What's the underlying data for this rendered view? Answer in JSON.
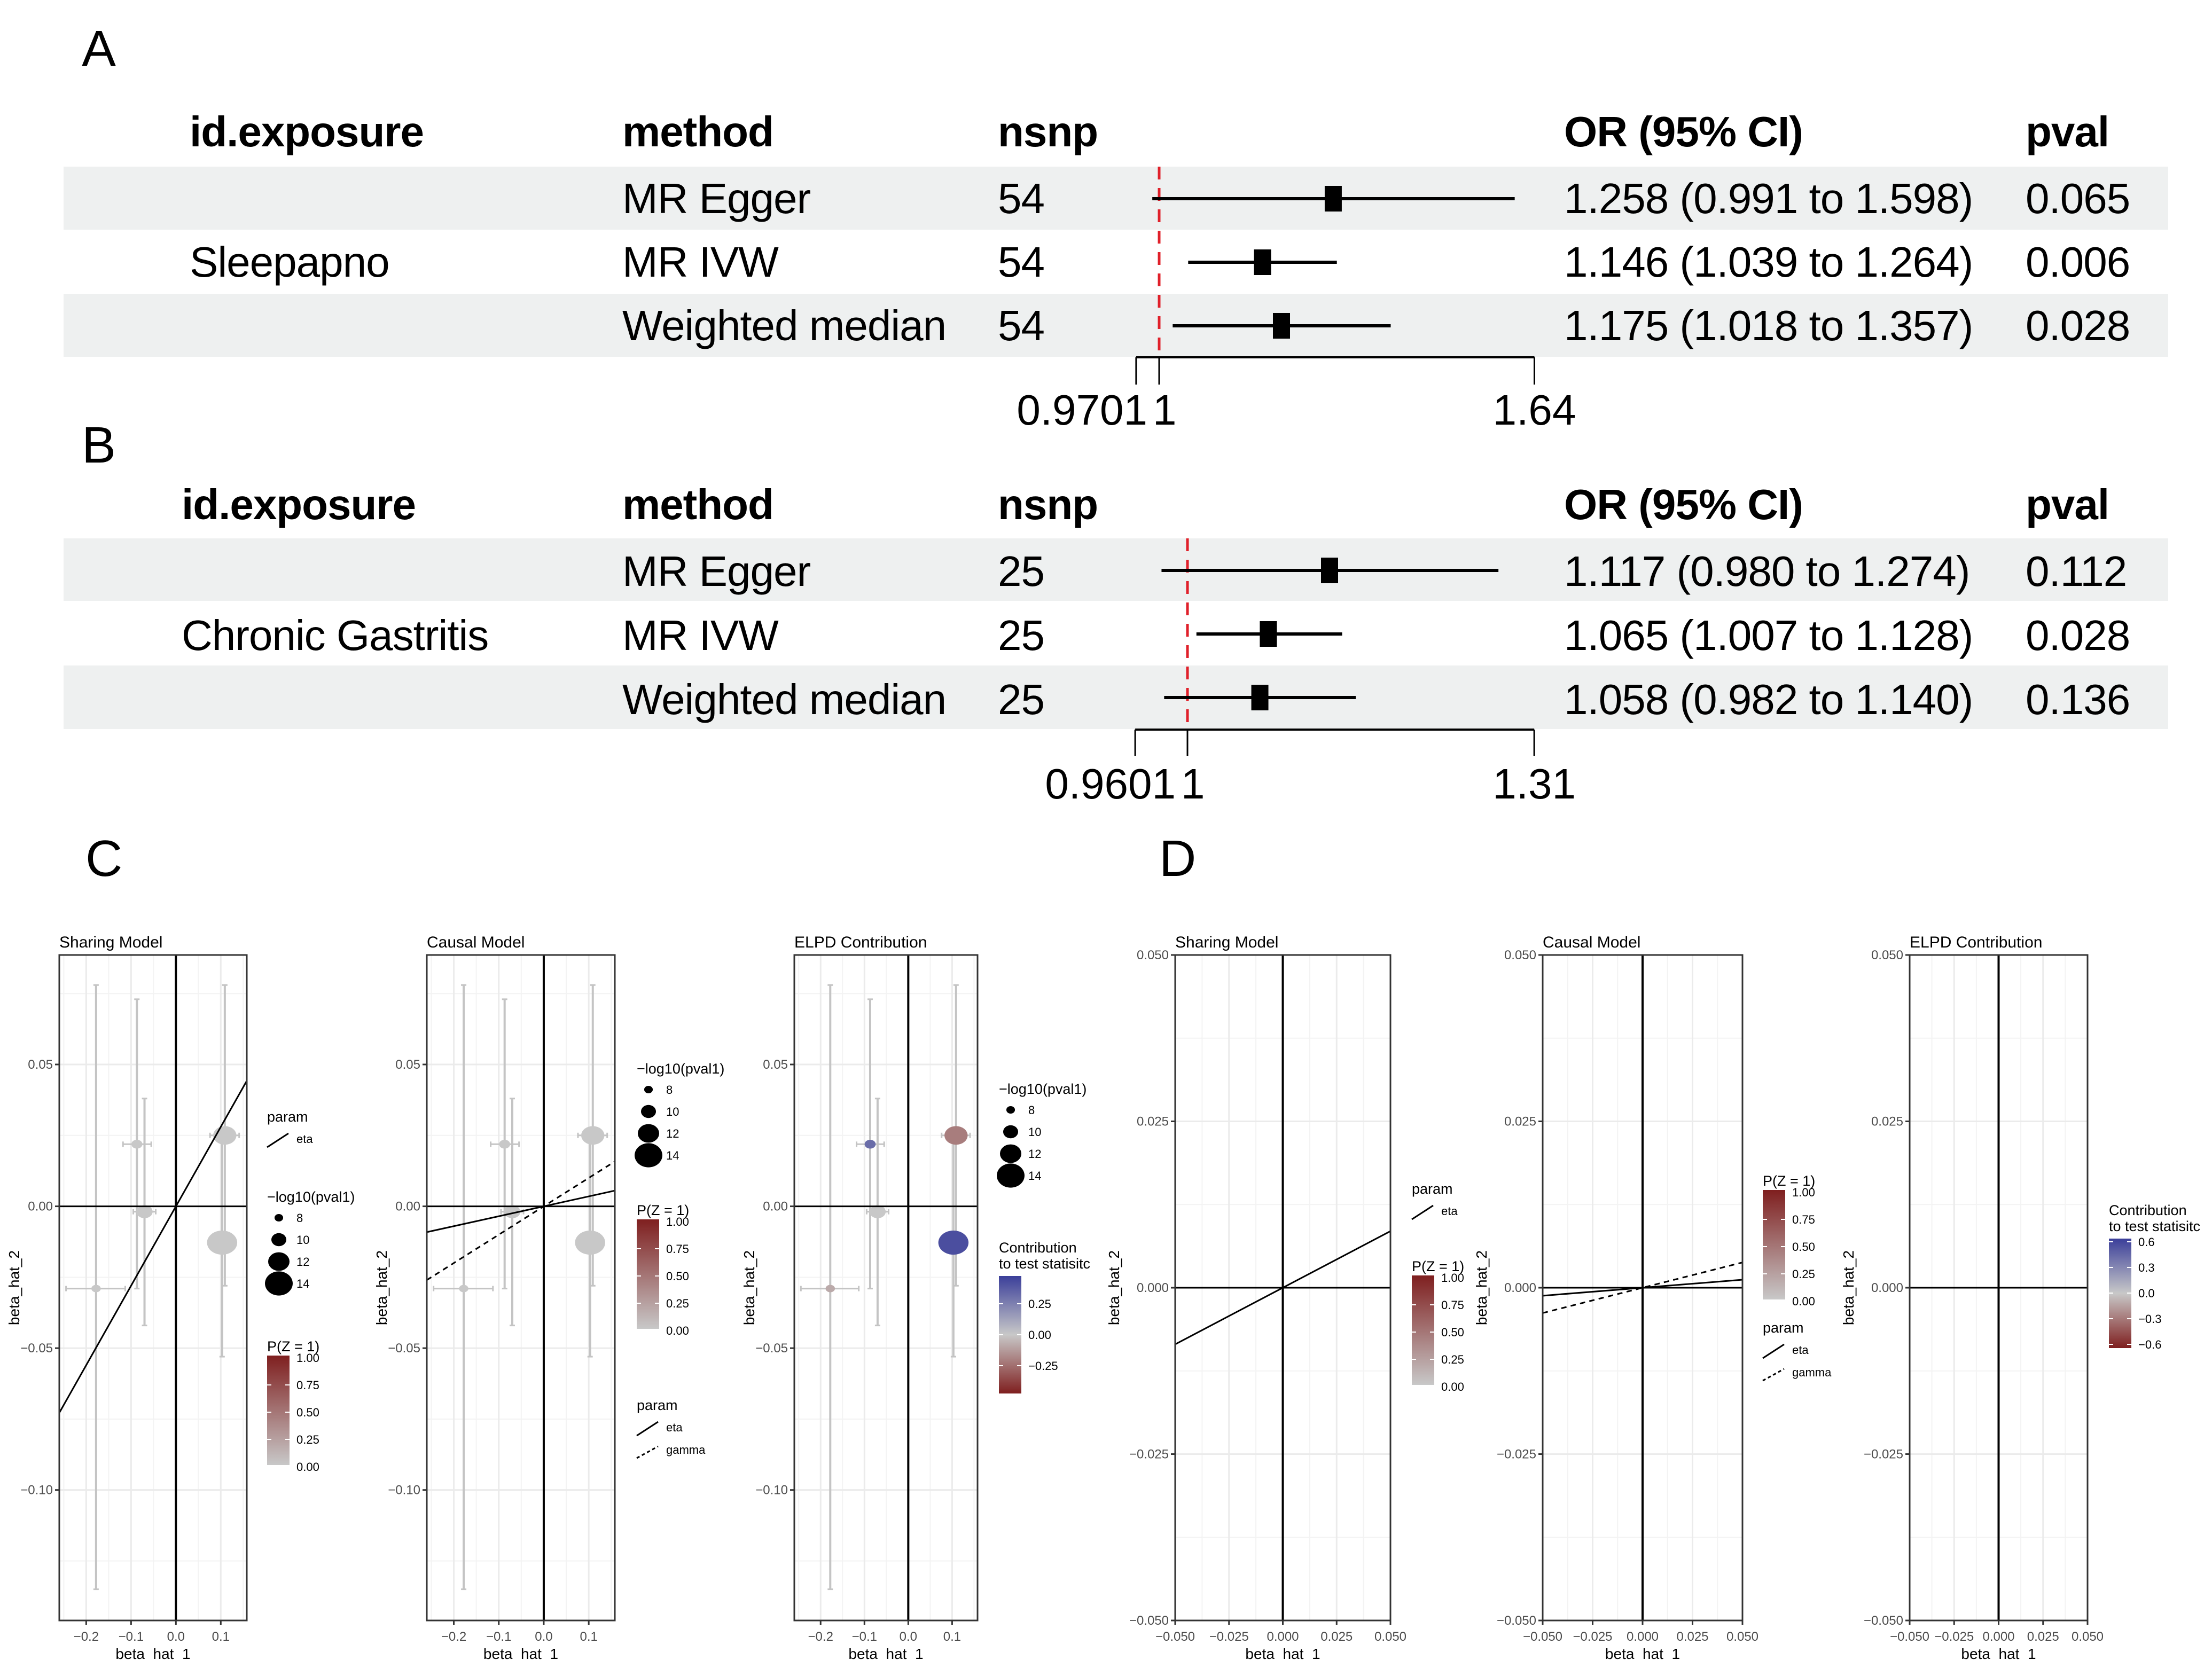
{
  "panels": {
    "A": {
      "label": "A",
      "headers": {
        "exposure": "id.exposure",
        "method": "method",
        "nsnp": "nsnp",
        "or": "OR (95% CI)",
        "pval": "pval"
      },
      "exposure": "Sleepapno",
      "rows": [
        {
          "method": "MR Egger",
          "nsnp": "54",
          "or_text": "1.258 (0.991 to 1.598)",
          "pval": "0.065",
          "or": 1.258,
          "lo": 0.991,
          "hi": 1.598
        },
        {
          "method": "MR IVW",
          "nsnp": "54",
          "or_text": "1.146 (1.039 to 1.264)",
          "pval": "0.006",
          "or": 1.146,
          "lo": 1.039,
          "hi": 1.264
        },
        {
          "method": "Weighted median",
          "nsnp": "54",
          "or_text": "1.175 (1.018 to 1.357)",
          "pval": "0.028",
          "or": 1.175,
          "lo": 1.018,
          "hi": 1.357
        }
      ],
      "axis_ticks": [
        {
          "value": 0.9701,
          "label": "0.9701"
        },
        {
          "value": 1,
          "label": "1"
        },
        {
          "value": 1.64,
          "label": "1.64"
        }
      ],
      "ref_value": 1
    },
    "B": {
      "label": "B",
      "headers": {
        "exposure": "id.exposure",
        "method": "method",
        "nsnp": "nsnp",
        "or": "OR (95% CI)",
        "pval": "pval"
      },
      "exposure": "Chronic Gastritis",
      "rows": [
        {
          "method": "MR Egger",
          "nsnp": "25",
          "or_text": "1.117 (0.980 to 1.274)",
          "pval": "0.112",
          "or": 1.117,
          "lo": 0.98,
          "hi": 1.274
        },
        {
          "method": "MR IVW",
          "nsnp": "25",
          "or_text": "1.065 (1.007 to 1.128)",
          "pval": "0.028",
          "or": 1.065,
          "lo": 1.007,
          "hi": 1.128
        },
        {
          "method": "Weighted median",
          "nsnp": "25",
          "or_text": "1.058 (0.982 to 1.140)",
          "pval": "0.136",
          "or": 1.058,
          "lo": 0.982,
          "hi": 1.14
        }
      ],
      "axis_ticks": [
        {
          "value": 0.9601,
          "label": "0.9601"
        },
        {
          "value": 1,
          "label": "1"
        },
        {
          "value": 1.31,
          "label": "1.31"
        }
      ],
      "ref_value": 1
    },
    "C": {
      "label": "C"
    },
    "D": {
      "label": "D"
    }
  },
  "legend_text": {
    "param": "param",
    "eta": "eta",
    "gamma": "gamma",
    "size_title": "−log10(pval1)",
    "size_labels": [
      "8",
      "10",
      "12",
      "14"
    ],
    "pz_title": "P(Z = 1)",
    "pz_labels": [
      "1.00",
      "0.75",
      "0.50",
      "0.25",
      "0.00"
    ],
    "contrib_title_1": "Contribution",
    "contrib_title_2": "to test statisitc",
    "contrib_labels_C": [
      "0.25",
      "0.00",
      "−0.25"
    ],
    "contrib_labels_D": [
      "0.6",
      "0.3",
      "0.0",
      "−0.3",
      "−0.6"
    ]
  },
  "colors": {
    "band": "#eef0f0",
    "ref_line": "#e0202a",
    "pz_high": "#7f1f1f",
    "pz_low": "#c8c8c8",
    "contrib_high": "#3b3f9a",
    "contrib_mid": "#c8c8c8",
    "contrib_low": "#7f1f1f",
    "errorbar": "#c4c4c4",
    "grid": "#ebebeb"
  },
  "chart_data": [
    {
      "type": "forest",
      "title": "A",
      "categories": [
        "MR Egger",
        "MR IVW",
        "Weighted median"
      ],
      "values": [
        1.258,
        1.146,
        1.175
      ],
      "lower": [
        0.991,
        1.039,
        1.018
      ],
      "upper": [
        1.598,
        1.264,
        1.357
      ],
      "xscale": "log",
      "xticks": [
        0.9701,
        1,
        1.64
      ],
      "reference_line": 1
    },
    {
      "type": "forest",
      "title": "B",
      "categories": [
        "MR Egger",
        "MR IVW",
        "Weighted median"
      ],
      "values": [
        1.117,
        1.065,
        1.058
      ],
      "lower": [
        0.98,
        1.007,
        0.982
      ],
      "upper": [
        1.274,
        1.128,
        1.14
      ],
      "xscale": "log",
      "xticks": [
        0.9601,
        1,
        1.31
      ],
      "reference_line": 1
    },
    {
      "type": "scatter",
      "group": "C",
      "title": "Sharing Model",
      "xlabel": "beta_hat_1",
      "ylabel": "beta_hat_2",
      "xlim": [
        -0.26,
        0.158
      ],
      "ylim": [
        -0.146,
        0.0886
      ],
      "xticks": [
        -0.2,
        -0.1,
        0.0,
        0.1
      ],
      "xtick_labels": [
        "−0.2",
        "−0.1",
        "0.0",
        "0.1"
      ],
      "yticks": [
        0.05,
        0.0,
        -0.05,
        -0.1
      ],
      "ytick_labels": [
        "0.05",
        "0.00",
        "−0.05",
        "−0.10"
      ],
      "points": "C_points",
      "lines": [
        {
          "name": "eta",
          "slope": 0.28,
          "dash": false
        }
      ],
      "color_mode": "pz",
      "legends": [
        "param",
        "size",
        "pz"
      ]
    },
    {
      "type": "scatter",
      "group": "C",
      "title": "Causal Model",
      "xlabel": "beta_hat_1",
      "ylabel": "beta_hat_2",
      "xlim": [
        -0.26,
        0.158
      ],
      "ylim": [
        -0.146,
        0.0886
      ],
      "xticks": [
        -0.2,
        -0.1,
        0.0,
        0.1
      ],
      "xtick_labels": [
        "−0.2",
        "−0.1",
        "0.0",
        "0.1"
      ],
      "yticks": [
        0.05,
        0.0,
        -0.05,
        -0.1
      ],
      "ytick_labels": [
        "0.05",
        "0.00",
        "−0.05",
        "−0.10"
      ],
      "points": "C_points",
      "lines": [
        {
          "name": "eta",
          "slope": 0.035,
          "dash": false
        },
        {
          "name": "gamma",
          "slope": 0.1,
          "dash": true
        }
      ],
      "color_mode": "pz",
      "legends": [
        "size",
        "pz",
        "param2"
      ]
    },
    {
      "type": "scatter",
      "group": "C",
      "title": "ELPD Contribution",
      "xlabel": "beta_hat_1",
      "ylabel": "beta_hat_2",
      "xlim": [
        -0.26,
        0.158
      ],
      "ylim": [
        -0.146,
        0.0886
      ],
      "xticks": [
        -0.2,
        -0.1,
        0.0,
        0.1
      ],
      "xtick_labels": [
        "−0.2",
        "−0.1",
        "0.0",
        "0.1"
      ],
      "yticks": [
        0.05,
        0.0,
        -0.05,
        -0.1
      ],
      "ytick_labels": [
        "0.05",
        "0.00",
        "−0.05",
        "−0.10"
      ],
      "points": "C_points",
      "lines": [],
      "color_mode": "contrib",
      "legends": [
        "size",
        "contribC"
      ]
    },
    {
      "type": "line",
      "group": "D",
      "title": "Sharing Model",
      "xlabel": "beta_hat_1",
      "ylabel": "beta_hat_2",
      "xlim": [
        -0.05,
        0.05
      ],
      "ylim": [
        -0.05,
        0.05
      ],
      "xticks": [
        -0.05,
        -0.025,
        0.0,
        0.025,
        0.05
      ],
      "xtick_labels": [
        "−0.050",
        "−0.025",
        "0.000",
        "0.025",
        "0.050"
      ],
      "yticks": [
        0.05,
        0.025,
        0.0,
        -0.025,
        -0.05
      ],
      "ytick_labels": [
        "0.050",
        "0.025",
        "0.000",
        "−0.025",
        "−0.050"
      ],
      "points": null,
      "lines": [
        {
          "name": "eta",
          "slope": 0.17,
          "dash": false
        }
      ],
      "legends": [
        "param",
        "pz"
      ]
    },
    {
      "type": "line",
      "group": "D",
      "title": "Causal Model",
      "xlabel": "beta_hat_1",
      "ylabel": "beta_hat_2",
      "xlim": [
        -0.05,
        0.05
      ],
      "ylim": [
        -0.05,
        0.05
      ],
      "xticks": [
        -0.05,
        -0.025,
        0.0,
        0.025,
        0.05
      ],
      "xtick_labels": [
        "−0.050",
        "−0.025",
        "0.000",
        "0.025",
        "0.050"
      ],
      "yticks": [
        0.05,
        0.025,
        0.0,
        -0.025,
        -0.05
      ],
      "ytick_labels": [
        "0.050",
        "0.025",
        "0.000",
        "−0.025",
        "−0.050"
      ],
      "points": null,
      "lines": [
        {
          "name": "eta",
          "slope": 0.024,
          "dash": false
        },
        {
          "name": "gamma",
          "slope": 0.076,
          "dash": true
        }
      ],
      "legends": [
        "pz",
        "param2"
      ]
    },
    {
      "type": "line",
      "group": "D",
      "title": "ELPD Contribution",
      "xlabel": "beta_hat_1",
      "ylabel": "beta_hat_2",
      "xlim": [
        -0.05,
        0.05
      ],
      "ylim": [
        -0.05,
        0.05
      ],
      "xticks": [
        -0.05,
        -0.025,
        0.0,
        0.025,
        0.05
      ],
      "xtick_labels": [
        "−0.050",
        "−0.025",
        "0.000",
        "0.025",
        "0.050"
      ],
      "yticks": [
        0.05,
        0.025,
        0.0,
        -0.025,
        -0.05
      ],
      "ytick_labels": [
        "0.050",
        "0.025",
        "0.000",
        "−0.025",
        "−0.050"
      ],
      "points": null,
      "lines": [],
      "legends": [
        "contribD"
      ]
    }
  ],
  "C_points": [
    {
      "x": -0.178,
      "y": -0.029,
      "xlo": -0.245,
      "xhi": -0.113,
      "ylo": -0.135,
      "yhi": 0.078,
      "neglog10p": 8,
      "pz": 0.0,
      "contrib": -0.08
    },
    {
      "x": -0.087,
      "y": 0.0219,
      "xlo": -0.118,
      "xhi": -0.055,
      "ylo": -0.029,
      "yhi": 0.073,
      "neglog10p": 8.5,
      "pz": 0.0,
      "contrib": 0.3
    },
    {
      "x": -0.07,
      "y": -0.0019,
      "xlo": -0.095,
      "xhi": -0.045,
      "ylo": -0.042,
      "yhi": 0.038,
      "neglog10p": 10,
      "pz": 0.0,
      "contrib": 0.0
    },
    {
      "x": 0.109,
      "y": 0.025,
      "xlo": 0.076,
      "xhi": 0.141,
      "ylo": -0.028,
      "yhi": 0.078,
      "neglog10p": 12,
      "pz": 0.0,
      "contrib": -0.2
    },
    {
      "x": 0.103,
      "y": -0.0128,
      "xlo": 0.077,
      "xhi": 0.127,
      "ylo": -0.053,
      "yhi": 0.025,
      "neglog10p": 14,
      "pz": 0.0,
      "contrib": 0.4
    }
  ]
}
